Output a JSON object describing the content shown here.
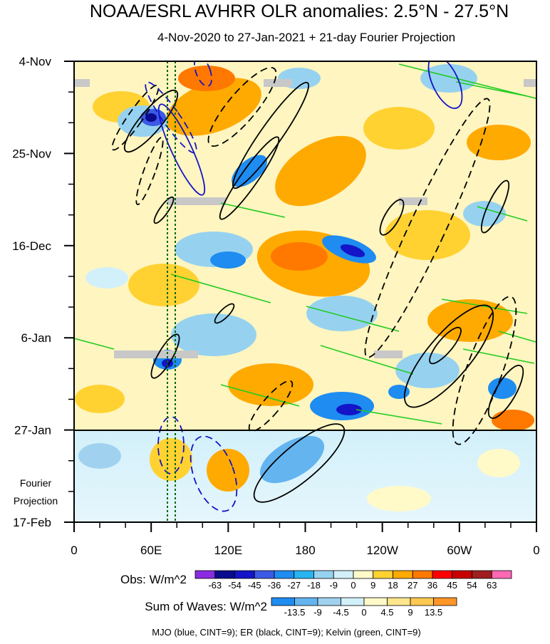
{
  "chart_data": {
    "type": "heatmap",
    "title": "NOAA/ESRL AVHRR OLR anomalies: 2.5°N - 27.5°N",
    "subtitle": "4-Nov-2020 to 27-Jan-2021 + 21-day Fourier Projection",
    "x_ticks": [
      "0",
      "60E",
      "120E",
      "180",
      "120W",
      "60W",
      "0"
    ],
    "x_range_deg_east": [
      0,
      360
    ],
    "y_ticks": [
      "4-Nov",
      "25-Nov",
      "16-Dec",
      "6-Jan",
      "27-Jan",
      "17-Feb"
    ],
    "y_range_days": [
      0,
      105
    ],
    "observation_end_day": 84,
    "projection_label": [
      "Fourier",
      "Projection"
    ],
    "obs_legend": {
      "title": "Obs: W/m^2",
      "labels": [
        "-63",
        "-54",
        "-45",
        "-36",
        "-27",
        "-18",
        "-9",
        "0",
        "9",
        "18",
        "27",
        "36",
        "45",
        "54",
        "63"
      ],
      "colors": [
        "#8a2be2",
        "#0a0a8c",
        "#1414c8",
        "#3c5ae6",
        "#1e8cf0",
        "#28b4f0",
        "#96d2f0",
        "#d2f0fa",
        "#fffac8",
        "#ffd232",
        "#ffaa00",
        "#ff7800",
        "#ff0000",
        "#c80000",
        "#a01e1e",
        "#ff69b4"
      ]
    },
    "waves_legend": {
      "title": "Sum of Waves: W/m^2",
      "labels": [
        "-13.5",
        "-9",
        "-4.5",
        "0",
        "4.5",
        "9",
        "13.5"
      ],
      "colors": [
        "#1e8cf0",
        "#64b4f0",
        "#a0d2f0",
        "#d2f0fa",
        "#fffac8",
        "#ffe68c",
        "#ffc850",
        "#ff9628"
      ]
    },
    "footnote": "MJO (blue, CINT=9); ER (black, CINT=9); Kelvin (green, CINT=9)",
    "series": [
      {
        "name": "MJO",
        "color": "#1414c8",
        "cint": 9
      },
      {
        "name": "ER",
        "color": "#000000",
        "cint": 9
      },
      {
        "name": "Kelvin",
        "color": "#22cc22",
        "cint": 9
      }
    ],
    "reference_longitudes_deg_east": [
      73,
      79
    ]
  }
}
